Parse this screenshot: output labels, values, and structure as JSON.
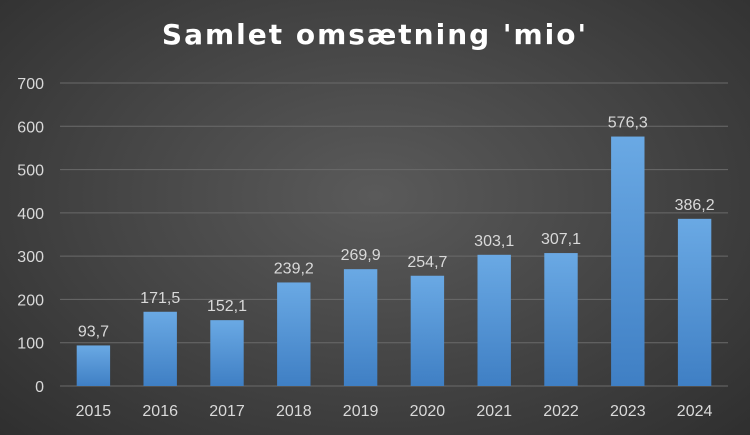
{
  "chart_data": {
    "type": "bar",
    "title": "Samlet omsætning 'mio'",
    "categories": [
      "2015",
      "2016",
      "2017",
      "2018",
      "2019",
      "2020",
      "2021",
      "2022",
      "2023",
      "2024"
    ],
    "values": [
      93.7,
      171.5,
      152.1,
      239.2,
      269.9,
      254.7,
      303.1,
      307.1,
      576.3,
      386.2
    ],
    "data_labels": [
      "93,7",
      "171,5",
      "152,1",
      "239,2",
      "269,9",
      "254,7",
      "303,1",
      "307,1",
      "576,3",
      "386,2"
    ],
    "ylim": [
      0,
      700
    ],
    "yticks": [
      0,
      100,
      200,
      300,
      400,
      500,
      600,
      700
    ],
    "xlabel": "",
    "ylabel": "",
    "grid": true,
    "legend": "none",
    "bar_color": "#5b9bd5"
  }
}
